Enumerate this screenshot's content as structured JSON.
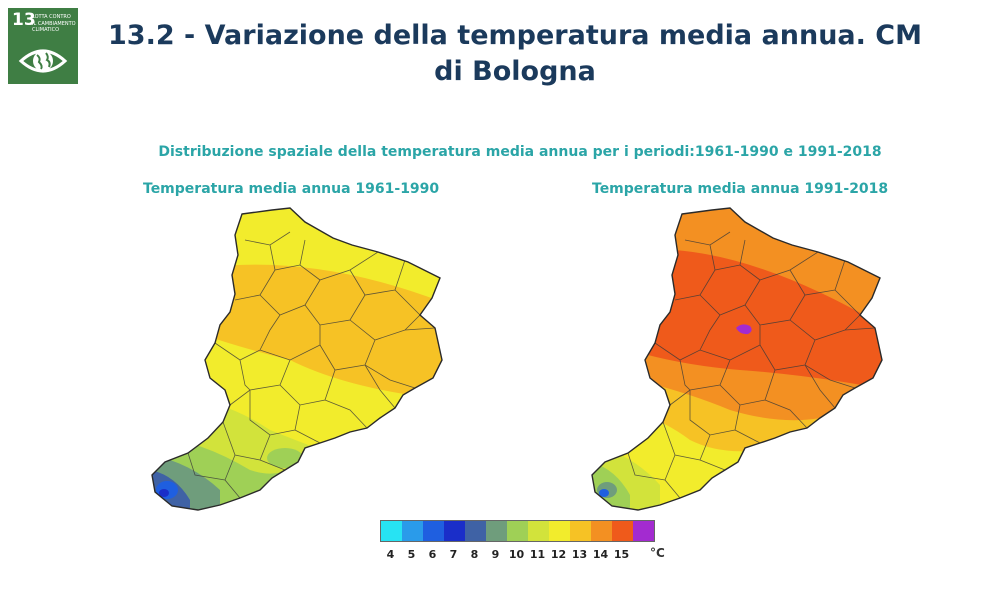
{
  "sdg_badge": {
    "number": "13",
    "label": "Lotta contro il cambiamento climatico",
    "color": "#3f7e44",
    "icon": "eye-globe-icon"
  },
  "title": "13.2 - Variazione della temperatura media annua. CM di Bologna",
  "subtitle": "Distribuzione spaziale della temperatura media annua per i periodi:1961-1990 e 1991-2018",
  "maps": [
    {
      "title": "Temperatura media annua 1961-1990"
    },
    {
      "title": "Temperatura media annua 1991-2018"
    }
  ],
  "legend": {
    "values": [
      "4",
      "5",
      "6",
      "7",
      "8",
      "9",
      "10",
      "11",
      "12",
      "13",
      "14",
      "15"
    ],
    "colors": [
      "#27e3f3",
      "#2a9bea",
      "#1f5fe0",
      "#1a2ec9",
      "#3f62a5",
      "#6f9d7c",
      "#9fd056",
      "#d2e33b",
      "#f2ec2c",
      "#f6c225",
      "#f39022",
      "#ef5a1b",
      "#a32bd0"
    ],
    "unit": "°C"
  }
}
